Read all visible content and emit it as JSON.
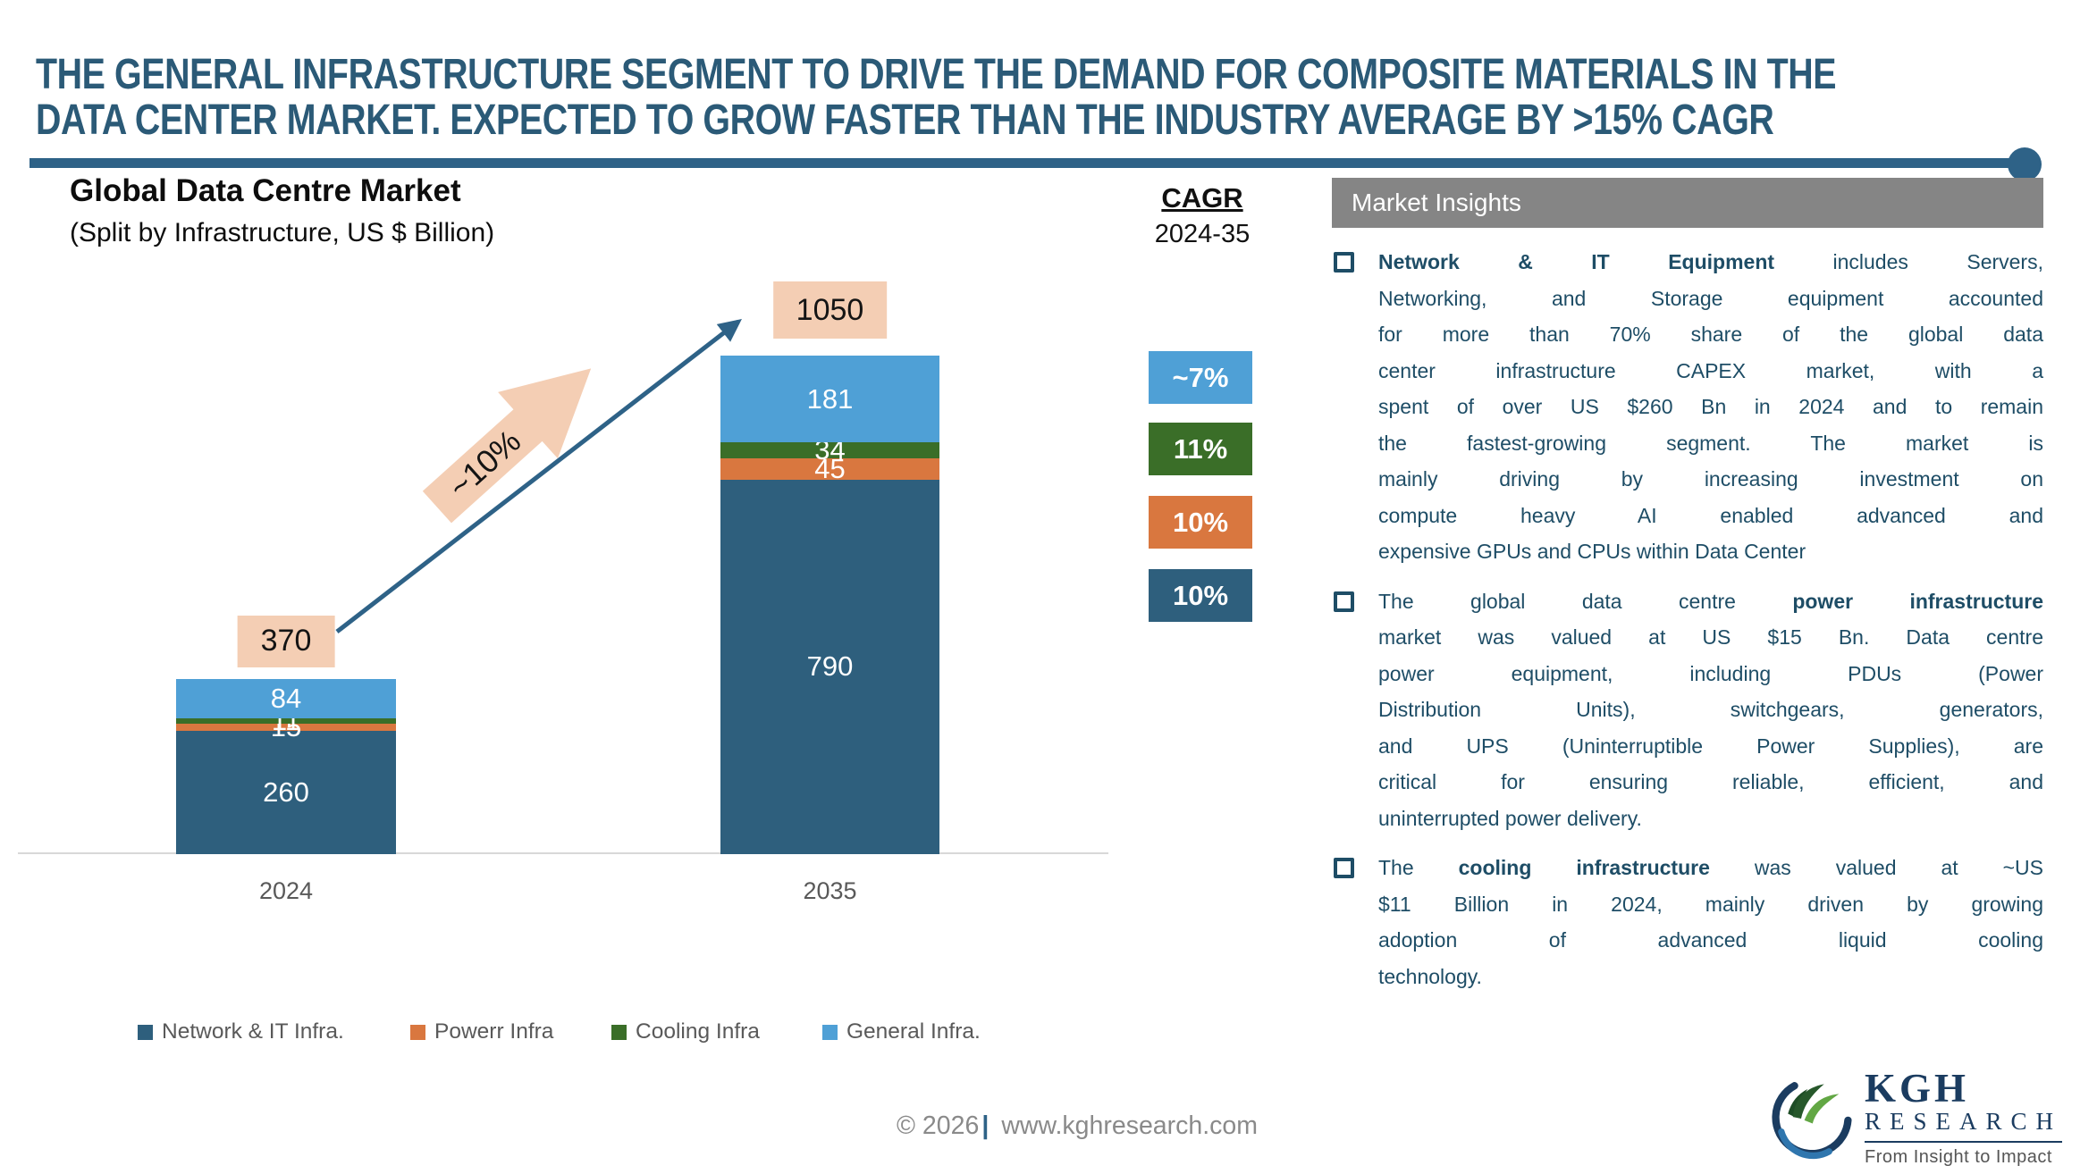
{
  "header": {
    "title_lines": [
      "THE GENERAL INFRASTRUCTURE SEGMENT TO DRIVE THE DEMAND FOR COMPOSITE MATERIALS IN THE",
      "DATA CENTER MARKET. EXPECTED TO GROW FASTER THAN THE INDUSTRY AVERAGE BY >15% CAGR"
    ]
  },
  "chart": {
    "title": "Global Data Centre Market",
    "subtitle": "(Split by Infrastructure, US $ Billion)",
    "growth_label": "~10%"
  },
  "chart_data": {
    "type": "bar",
    "stacked": true,
    "title": "Global Data Centre Market (Split by Infrastructure, US $ Billion)",
    "categories": [
      "2024",
      "2035"
    ],
    "series": [
      {
        "name": "Network & IT Infra.",
        "color": "#2E5F7D",
        "values": [
          260,
          790
        ]
      },
      {
        "name": "Powerr Infra",
        "color": "#D9773F",
        "values": [
          15,
          45
        ]
      },
      {
        "name": "Cooling Infra",
        "color": "#3A6E28",
        "values": [
          11,
          34
        ]
      },
      {
        "name": "General Infra.",
        "color": "#4FA0D6",
        "values": [
          84,
          181
        ]
      }
    ],
    "totals": [
      370,
      1050
    ],
    "growth_annotation": "~10%",
    "ylabel": "US $ Billion",
    "grid": false,
    "legend_position": "bottom"
  },
  "cagr": {
    "heading": "CAGR",
    "period": "2024-35",
    "items": [
      {
        "label": "~7%",
        "color": "#4FA0D6"
      },
      {
        "label": "11%",
        "color": "#3A6E28"
      },
      {
        "label": "10%",
        "color": "#D9773F"
      },
      {
        "label": "10%",
        "color": "#2E5F7D"
      }
    ]
  },
  "insights": {
    "heading": "Market Insights",
    "items": [
      {
        "lines": [
          {
            "runs": [
              {
                "t": "Network & IT Equipment",
                "b": true
              },
              {
                "t": " includes Servers,",
                "b": false
              }
            ],
            "last": false
          },
          {
            "runs": [
              {
                "t": "Networking, and Storage equipment accounted",
                "b": false
              }
            ],
            "last": false
          },
          {
            "runs": [
              {
                "t": "for more than 70% share of the global data",
                "b": false
              }
            ],
            "last": false
          },
          {
            "runs": [
              {
                "t": "center infrastructure CAPEX market, with a",
                "b": false
              }
            ],
            "last": false
          },
          {
            "runs": [
              {
                "t": "spent of over US $260 Bn in 2024 and to remain",
                "b": false
              }
            ],
            "last": false
          },
          {
            "runs": [
              {
                "t": "the fastest-growing segment. The market is",
                "b": false
              }
            ],
            "last": false
          },
          {
            "runs": [
              {
                "t": "mainly driving by increasing investment on",
                "b": false
              }
            ],
            "last": false
          },
          {
            "runs": [
              {
                "t": "compute heavy AI enabled advanced and",
                "b": false
              }
            ],
            "last": false
          },
          {
            "runs": [
              {
                "t": "expensive GPUs and CPUs within Data Center",
                "b": false
              }
            ],
            "last": true
          }
        ]
      },
      {
        "lines": [
          {
            "runs": [
              {
                "t": "The global data centre ",
                "b": false
              },
              {
                "t": "power infrastructure",
                "b": true
              }
            ],
            "last": false
          },
          {
            "runs": [
              {
                "t": "market was valued at US $15 Bn. Data centre",
                "b": false
              }
            ],
            "last": false
          },
          {
            "runs": [
              {
                "t": "power equipment, including PDUs (Power",
                "b": false
              }
            ],
            "last": false
          },
          {
            "runs": [
              {
                "t": "Distribution Units), switchgears, generators,",
                "b": false
              }
            ],
            "last": false
          },
          {
            "runs": [
              {
                "t": "and UPS (Uninterruptible Power Supplies), are",
                "b": false
              }
            ],
            "last": false
          },
          {
            "runs": [
              {
                "t": "critical for ensuring reliable, efficient, and",
                "b": false
              }
            ],
            "last": false
          },
          {
            "runs": [
              {
                "t": "uninterrupted power delivery.",
                "b": false
              }
            ],
            "last": true
          }
        ]
      },
      {
        "lines": [
          {
            "runs": [
              {
                "t": "The ",
                "b": false
              },
              {
                "t": "cooling infrastructure",
                "b": true
              },
              {
                "t": " was valued at ~US",
                "b": false
              }
            ],
            "last": false
          },
          {
            "runs": [
              {
                "t": "$11 Billion in 2024, mainly driven by growing",
                "b": false
              }
            ],
            "last": false
          },
          {
            "runs": [
              {
                "t": "adoption of advanced liquid cooling",
                "b": false
              }
            ],
            "last": false
          },
          {
            "runs": [
              {
                "t": "technology.",
                "b": false
              }
            ],
            "last": true
          }
        ]
      }
    ]
  },
  "footer": {
    "copyright": "© 2026",
    "separator": "|",
    "url": "www.kghresearch.com"
  },
  "logo": {
    "name": "KGH",
    "subname": "RESEARCH",
    "tagline": "From Insight to Impact"
  },
  "colors": {
    "title_blue": "#2B5A77",
    "divider_blue": "#2E6287",
    "insight_text": "#1E4D66",
    "header_gray": "#858585",
    "peach": "#F4CEB4",
    "axis_gray": "#D8D8D8",
    "label_gray": "#595959"
  }
}
